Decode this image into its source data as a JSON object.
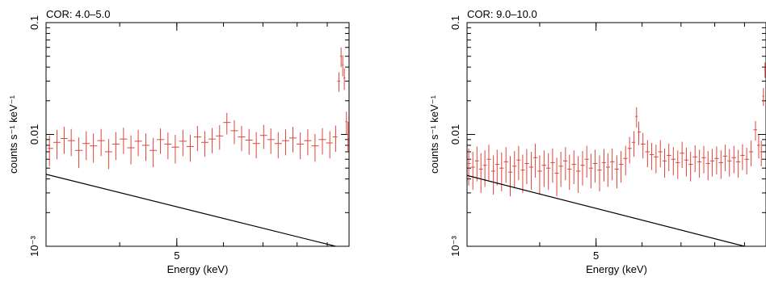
{
  "chart_data": [
    {
      "type": "scatter",
      "title": "COR: 4.0–5.0",
      "xlabel": "Energy (keV)",
      "ylabel": "counts s⁻¹ keV⁻¹",
      "x_scale": "log",
      "y_scale": "log",
      "xlim": [
        3.0,
        9.8
      ],
      "ylim": [
        0.001,
        0.1
      ],
      "x_ticks": [
        {
          "value": 5,
          "label": "5"
        }
      ],
      "y_ticks": [
        {
          "value": 0.001,
          "label": "10⁻³"
        },
        {
          "value": 0.01,
          "label": "0.01"
        },
        {
          "value": 0.1,
          "label": "0.1"
        }
      ],
      "grid": false,
      "series": [
        {
          "kind": "data",
          "color": "#e0443a",
          "x": [
            3.04,
            3.13,
            3.22,
            3.31,
            3.41,
            3.51,
            3.61,
            3.72,
            3.83,
            3.94,
            4.06,
            4.18,
            4.3,
            4.43,
            4.56,
            4.69,
            4.83,
            4.97,
            5.12,
            5.27,
            5.42,
            5.58,
            5.74,
            5.91,
            6.08,
            6.26,
            6.44,
            6.63,
            6.82,
            7.02,
            7.22,
            7.43,
            7.65,
            7.87,
            8.1,
            8.34,
            8.58,
            8.83,
            9.09,
            9.3,
            9.42,
            9.5,
            9.56,
            9.62,
            9.7,
            9.76
          ],
          "y": [
            0.0075,
            0.0085,
            0.0092,
            0.0088,
            0.0072,
            0.0083,
            0.0079,
            0.0088,
            0.007,
            0.0082,
            0.0091,
            0.0076,
            0.0087,
            0.008,
            0.0072,
            0.009,
            0.0082,
            0.0077,
            0.0087,
            0.0078,
            0.0095,
            0.0085,
            0.0091,
            0.0097,
            0.0128,
            0.0108,
            0.0095,
            0.0089,
            0.0083,
            0.0098,
            0.009,
            0.0083,
            0.0088,
            0.0093,
            0.0082,
            0.0088,
            0.0079,
            0.009,
            0.0084,
            0.0095,
            0.03,
            0.05,
            0.042,
            0.032,
            0.013,
            0.01
          ],
          "yerr": [
            0.0023,
            0.0025,
            0.0025,
            0.0024,
            0.0022,
            0.0024,
            0.0023,
            0.0024,
            0.0021,
            0.0023,
            0.0024,
            0.0022,
            0.0023,
            0.0022,
            0.0021,
            0.0023,
            0.0022,
            0.0022,
            0.0023,
            0.0021,
            0.0024,
            0.0022,
            0.0023,
            0.0024,
            0.0028,
            0.0026,
            0.0024,
            0.0023,
            0.0022,
            0.0024,
            0.0023,
            0.0022,
            0.0023,
            0.0024,
            0.0022,
            0.0023,
            0.0022,
            0.0024,
            0.0023,
            0.0025,
            0.006,
            0.01,
            0.009,
            0.007,
            0.003,
            0.003
          ]
        },
        {
          "kind": "model",
          "color": "#000000",
          "x": [
            3.0,
            9.3
          ],
          "y": [
            0.0044,
            0.001
          ]
        }
      ]
    },
    {
      "type": "scatter",
      "title": "COR: 9.0–10.0",
      "xlabel": "Energy (keV)",
      "ylabel": "counts s⁻¹ keV⁻¹",
      "x_scale": "log",
      "y_scale": "log",
      "xlim": [
        3.0,
        9.8
      ],
      "ylim": [
        0.001,
        0.1
      ],
      "x_ticks": [
        {
          "value": 5,
          "label": "5"
        }
      ],
      "y_ticks": [
        {
          "value": 0.001,
          "label": "10⁻³"
        },
        {
          "value": 0.01,
          "label": "0.01"
        },
        {
          "value": 0.1,
          "label": "0.1"
        }
      ],
      "grid": false,
      "series": [
        {
          "kind": "data",
          "color": "#e0443a",
          "x": [
            3.02,
            3.07,
            3.12,
            3.17,
            3.22,
            3.27,
            3.33,
            3.38,
            3.44,
            3.5,
            3.56,
            3.62,
            3.68,
            3.74,
            3.8,
            3.87,
            3.93,
            4.0,
            4.07,
            4.14,
            4.21,
            4.28,
            4.35,
            4.43,
            4.5,
            4.58,
            4.66,
            4.74,
            4.82,
            4.9,
            4.98,
            5.07,
            5.16,
            5.24,
            5.33,
            5.43,
            5.52,
            5.62,
            5.71,
            5.81,
            5.87,
            5.92,
            6.02,
            6.13,
            6.23,
            6.34,
            6.45,
            6.56,
            6.67,
            6.79,
            6.91,
            7.03,
            7.15,
            7.27,
            7.4,
            7.53,
            7.66,
            7.79,
            7.92,
            8.06,
            8.2,
            8.34,
            8.48,
            8.63,
            8.78,
            8.93,
            9.08,
            9.24,
            9.4,
            9.52,
            9.62,
            9.7,
            9.76
          ],
          "y": [
            0.0055,
            0.0051,
            0.0058,
            0.0049,
            0.0053,
            0.006,
            0.0047,
            0.0054,
            0.005,
            0.0057,
            0.0046,
            0.0052,
            0.0059,
            0.0048,
            0.0055,
            0.0051,
            0.0062,
            0.0047,
            0.0053,
            0.005,
            0.0056,
            0.0045,
            0.0052,
            0.0058,
            0.0049,
            0.0054,
            0.0047,
            0.0053,
            0.006,
            0.005,
            0.0055,
            0.0048,
            0.0056,
            0.0051,
            0.0057,
            0.0049,
            0.0054,
            0.0061,
            0.0075,
            0.0085,
            0.0145,
            0.0105,
            0.0082,
            0.007,
            0.0066,
            0.0063,
            0.007,
            0.0058,
            0.0065,
            0.006,
            0.0056,
            0.0068,
            0.0059,
            0.0054,
            0.0063,
            0.0057,
            0.0062,
            0.0055,
            0.0058,
            0.0061,
            0.0056,
            0.0064,
            0.0058,
            0.0062,
            0.0057,
            0.0065,
            0.006,
            0.007,
            0.011,
            0.008,
            0.007,
            0.022,
            0.038
          ],
          "yerr": [
            0.002,
            0.0019,
            0.002,
            0.0019,
            0.0019,
            0.0021,
            0.0018,
            0.0019,
            0.0019,
            0.002,
            0.0018,
            0.0019,
            0.002,
            0.0018,
            0.0019,
            0.0019,
            0.0021,
            0.0018,
            0.0019,
            0.0018,
            0.0019,
            0.0017,
            0.0018,
            0.0019,
            0.0017,
            0.0018,
            0.0017,
            0.0018,
            0.0019,
            0.0017,
            0.0018,
            0.0017,
            0.0018,
            0.0017,
            0.0018,
            0.0016,
            0.0017,
            0.0018,
            0.002,
            0.0022,
            0.003,
            0.0025,
            0.0021,
            0.0019,
            0.0018,
            0.0018,
            0.0019,
            0.0017,
            0.0018,
            0.0017,
            0.0016,
            0.0018,
            0.0017,
            0.0016,
            0.0017,
            0.0016,
            0.0017,
            0.0016,
            0.0016,
            0.0017,
            0.0016,
            0.0017,
            0.0016,
            0.0017,
            0.0016,
            0.0017,
            0.0016,
            0.0018,
            0.0022,
            0.0019,
            0.0018,
            0.004,
            0.006
          ]
        },
        {
          "kind": "model",
          "color": "#000000",
          "x": [
            3.0,
            9.0
          ],
          "y": [
            0.0043,
            0.001
          ]
        }
      ]
    }
  ]
}
